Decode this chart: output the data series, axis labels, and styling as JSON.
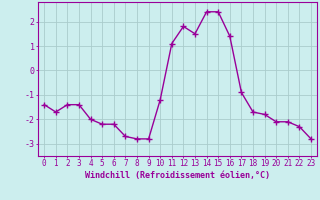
{
  "x": [
    0,
    1,
    2,
    3,
    4,
    5,
    6,
    7,
    8,
    9,
    10,
    11,
    12,
    13,
    14,
    15,
    16,
    17,
    18,
    19,
    20,
    21,
    22,
    23
  ],
  "y": [
    -1.4,
    -1.7,
    -1.4,
    -1.4,
    -2.0,
    -2.2,
    -2.2,
    -2.7,
    -2.8,
    -2.8,
    -1.2,
    1.1,
    1.8,
    1.5,
    2.4,
    2.4,
    1.4,
    -0.9,
    -1.7,
    -1.8,
    -2.1,
    -2.1,
    -2.3,
    -2.8
  ],
  "line_color": "#990099",
  "marker": "+",
  "marker_size": 4,
  "line_width": 1.0,
  "bg_color": "#cceeee",
  "grid_color": "#aacccc",
  "xlabel": "Windchill (Refroidissement éolien,°C)",
  "xlabel_color": "#990099",
  "tick_color": "#990099",
  "spine_color": "#990099",
  "yticks": [
    -3,
    -2,
    -1,
    0,
    1,
    2
  ],
  "ylim": [
    -3.5,
    2.8
  ],
  "xlim": [
    -0.5,
    23.5
  ],
  "xticks": [
    0,
    1,
    2,
    3,
    4,
    5,
    6,
    7,
    8,
    9,
    10,
    11,
    12,
    13,
    14,
    15,
    16,
    17,
    18,
    19,
    20,
    21,
    22,
    23
  ],
  "tick_fontsize": 5.5,
  "xlabel_fontsize": 6.0
}
